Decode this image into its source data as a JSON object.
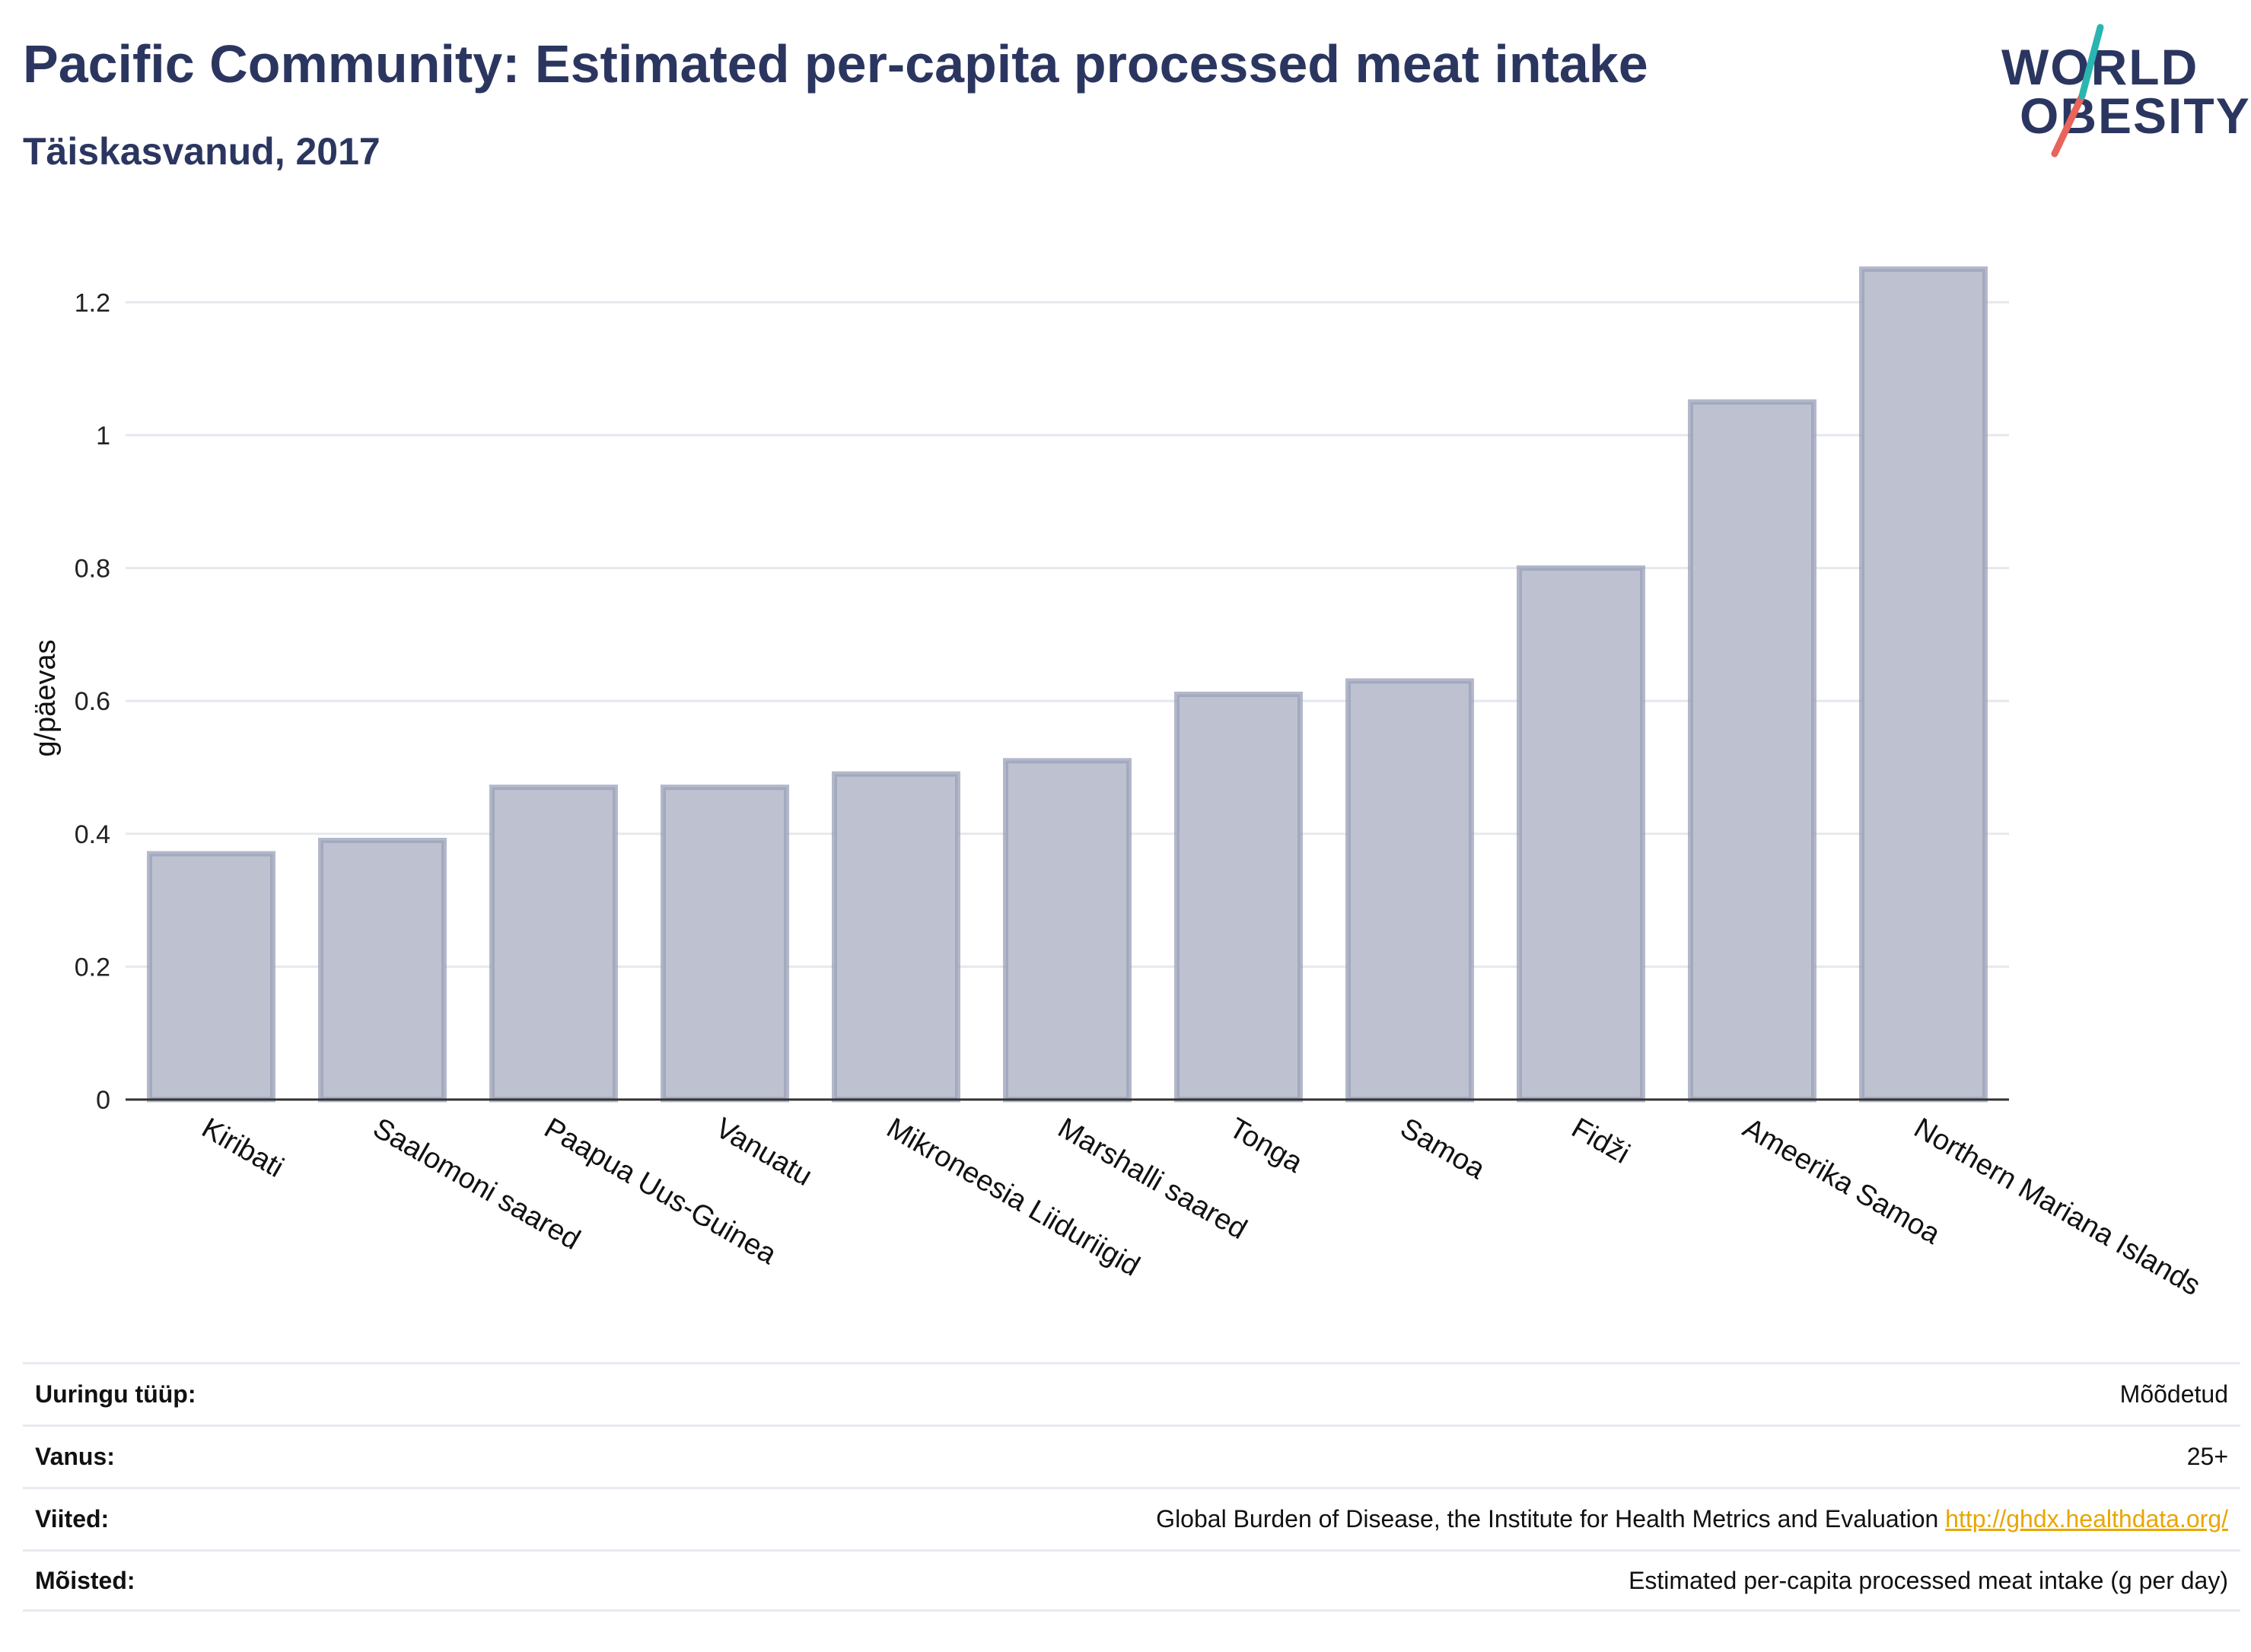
{
  "header": {
    "title": "Pacific Community: Estimated per-capita processed meat intake",
    "subtitle": "Täiskasvanud, 2017"
  },
  "logo": {
    "line1": "WORLD",
    "line2": "OBESITY",
    "accent_teal": "#2ab5b0",
    "accent_red": "#e9645a"
  },
  "chart_data": {
    "type": "bar",
    "categories": [
      "Kiribati",
      "Saalomoni saared",
      "Paapua Uus-Guinea",
      "Vanuatu",
      "Mikroneesia Liiduriigid",
      "Marshalli saared",
      "Tonga",
      "Samoa",
      "Fidži",
      "Ameerika Samoa",
      "Northern Mariana Islands"
    ],
    "values": [
      0.37,
      0.39,
      0.47,
      0.47,
      0.49,
      0.51,
      0.61,
      0.63,
      0.8,
      1.05,
      1.25
    ],
    "ylabel": "g/päevas",
    "xlabel": "",
    "ylim": [
      0,
      1.3
    ],
    "yticks": [
      0,
      0.2,
      0.4,
      0.6,
      0.8,
      1,
      1.2
    ],
    "ytick_labels": [
      "0",
      "0.2",
      "0.4",
      "0.6",
      "0.8",
      "1",
      "1.2"
    ],
    "grid": true,
    "bar_fill": "#bec2d0",
    "bar_stroke": "#9aa0b8"
  },
  "meta": {
    "rows": [
      {
        "key": "Uuringu tüüp:",
        "value": "Mõõdetud"
      },
      {
        "key": "Vanus:",
        "value": "25+"
      },
      {
        "key": "Viited:",
        "value": "Global Burden of Disease, the Institute for Health Metrics and Evaluation ",
        "link": "http://ghdx.healthdata.org/"
      },
      {
        "key": "Mõisted:",
        "value": "Estimated per-capita processed meat intake (g per day)"
      }
    ]
  }
}
